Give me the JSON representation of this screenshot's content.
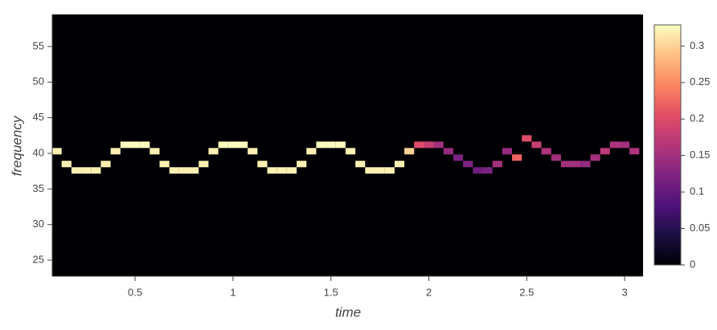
{
  "chart_data": {
    "type": "heatmap",
    "xlabel": "time",
    "ylabel": "frequency",
    "xlim": [
      0.077,
      3.094
    ],
    "ylim": [
      22.75,
      59.5
    ],
    "xticks": [
      0.5,
      1,
      1.5,
      2,
      2.5,
      3
    ],
    "yticks": [
      25,
      30,
      35,
      40,
      45,
      50,
      55
    ],
    "colorbar": {
      "lim": [
        0,
        0.329
      ],
      "ticks": [
        0,
        0.05,
        0.1,
        0.15,
        0.2,
        0.25,
        0.3
      ]
    },
    "cells": {
      "x": [
        0.1,
        0.15,
        0.2,
        0.25,
        0.3,
        0.35,
        0.4,
        0.45,
        0.5,
        0.55,
        0.6,
        0.65,
        0.7,
        0.75,
        0.8,
        0.85,
        0.9,
        0.95,
        1.0,
        1.05,
        1.1,
        1.15,
        1.2,
        1.25,
        1.3,
        1.35,
        1.4,
        1.45,
        1.5,
        1.55,
        1.6,
        1.65,
        1.7,
        1.75,
        1.8,
        1.85,
        1.9,
        1.95,
        2.0,
        2.05,
        2.1,
        2.15,
        2.2,
        2.25,
        2.3,
        2.35,
        2.4,
        2.45,
        2.5,
        2.55,
        2.6,
        2.65,
        2.7,
        2.75,
        2.8,
        2.85,
        2.9,
        2.95,
        3.0,
        3.05
      ],
      "y": [
        40.3,
        38.5,
        37.6,
        37.6,
        37.6,
        38.5,
        40.3,
        41.2,
        41.2,
        41.2,
        40.3,
        38.5,
        37.6,
        37.6,
        37.6,
        38.5,
        40.3,
        41.2,
        41.2,
        41.2,
        40.3,
        38.5,
        37.6,
        37.6,
        37.6,
        38.5,
        40.3,
        41.2,
        41.2,
        41.2,
        40.3,
        38.5,
        37.6,
        37.6,
        37.6,
        38.5,
        40.3,
        41.2,
        41.2,
        41.2,
        40.3,
        39.4,
        38.5,
        37.6,
        37.6,
        38.5,
        40.3,
        39.4,
        42.1,
        41.2,
        40.3,
        39.4,
        38.5,
        38.5,
        38.5,
        39.4,
        40.3,
        41.2,
        41.2,
        40.3
      ],
      "values": [
        0.32,
        0.32,
        0.32,
        0.32,
        0.32,
        0.32,
        0.32,
        0.33,
        0.33,
        0.33,
        0.32,
        0.32,
        0.32,
        0.32,
        0.32,
        0.32,
        0.32,
        0.33,
        0.33,
        0.33,
        0.32,
        0.32,
        0.32,
        0.32,
        0.32,
        0.32,
        0.32,
        0.33,
        0.33,
        0.33,
        0.32,
        0.32,
        0.32,
        0.32,
        0.32,
        0.32,
        0.3,
        0.2,
        0.18,
        0.15,
        0.14,
        0.12,
        0.12,
        0.11,
        0.12,
        0.15,
        0.14,
        0.22,
        0.2,
        0.18,
        0.16,
        0.15,
        0.15,
        0.15,
        0.14,
        0.15,
        0.17,
        0.16,
        0.15,
        0.16
      ]
    }
  }
}
